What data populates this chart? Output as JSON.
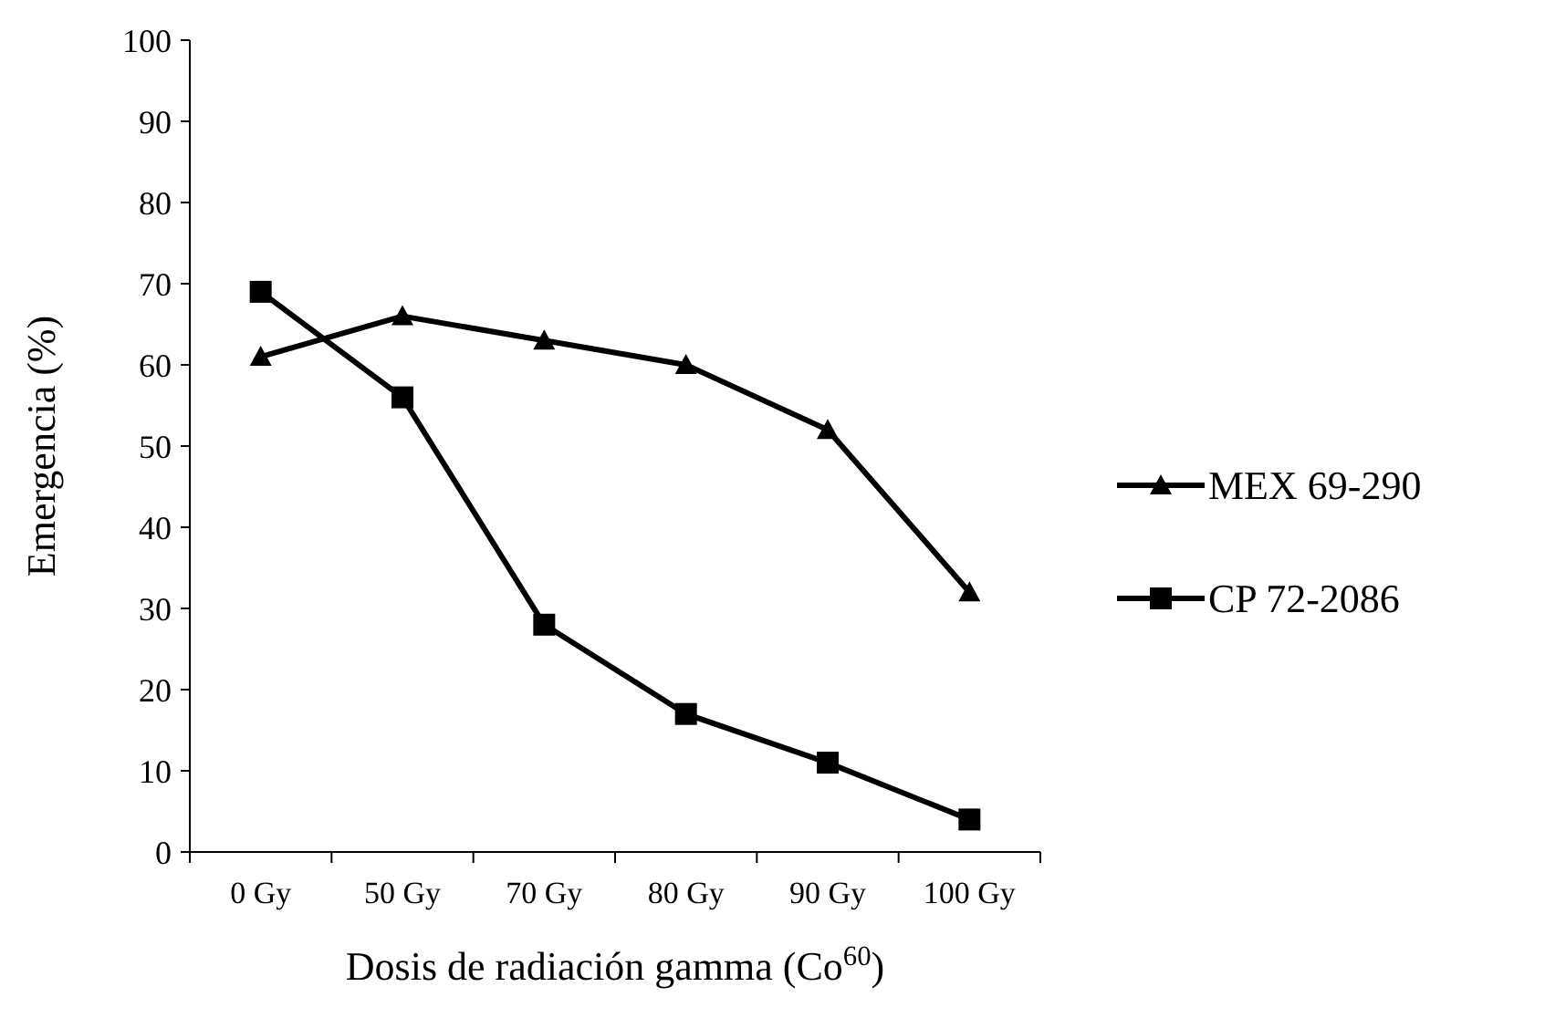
{
  "chart_data": {
    "type": "line",
    "xlabel": "Dosis de radiación gamma (Co$^{60}$)",
    "ylabel": "Emergencia (%)",
    "categories": [
      "0 Gy",
      "50 Gy",
      "70 Gy",
      "80 Gy",
      "90 Gy",
      "100 Gy"
    ],
    "series": [
      {
        "name": "MEX 69-290",
        "color": "#000000",
        "marker": "triangle",
        "values": [
          61,
          66,
          63,
          60,
          52,
          32
        ]
      },
      {
        "name": "CP 72-2086",
        "color": "#000000",
        "marker": "square",
        "values": [
          69,
          56,
          28,
          17,
          11,
          4
        ]
      }
    ],
    "ylim": [
      0,
      100
    ],
    "yticks": [
      0,
      10,
      20,
      30,
      40,
      50,
      60,
      70,
      80,
      90,
      100
    ],
    "grid": false,
    "legend": "right",
    "line_style": "solid"
  }
}
